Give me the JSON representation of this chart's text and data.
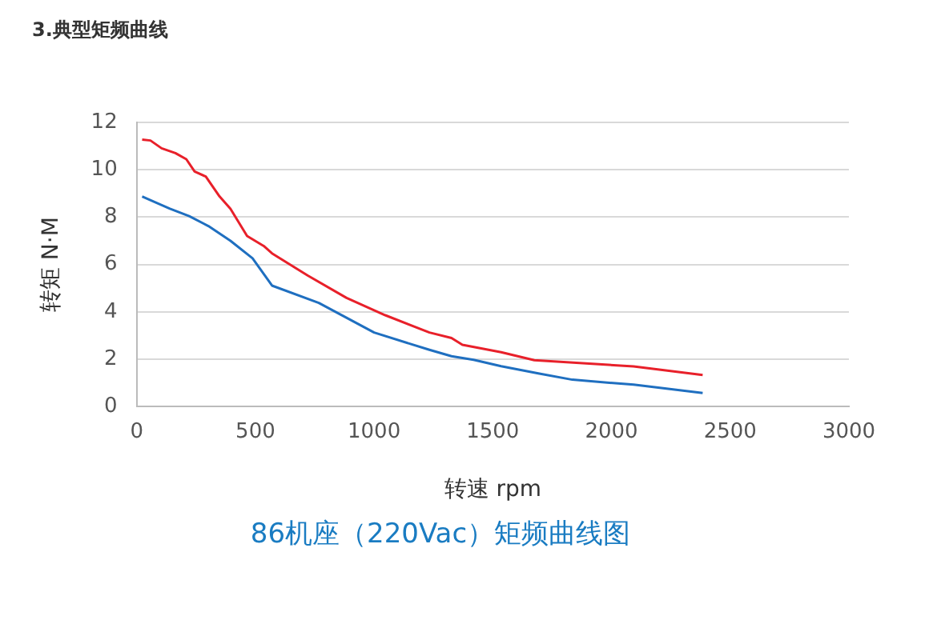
{
  "chart_data": {
    "type": "line",
    "title": "3.典型矩频曲线",
    "subtitle": "86机座（220Vac）矩频曲线图",
    "xlabel": "转速 rpm",
    "ylabel": "转矩 N·M",
    "xlim": [
      0,
      3000
    ],
    "xticks": [
      0,
      500,
      1000,
      1500,
      2000,
      2500,
      3000
    ],
    "ylim": [
      0,
      12
    ],
    "yticks": [
      0,
      2,
      4,
      6,
      8,
      10,
      12
    ],
    "grid": "y",
    "legend": false,
    "marker": "none",
    "line_style": "solid",
    "series": [
      {
        "color": "#1f6fc0",
        "x": [
          23,
          140,
          221,
          302,
          395,
          488,
          570,
          767,
          1000,
          1233,
          1326,
          1419,
          1535,
          1696,
          1835,
          2093,
          2384
        ],
        "values": [
          8.87,
          8.35,
          8.04,
          7.62,
          7.0,
          6.26,
          5.11,
          4.38,
          3.13,
          2.4,
          2.13,
          1.98,
          1.71,
          1.4,
          1.14,
          0.93,
          0.58
        ]
      },
      {
        "color": "#e8202a",
        "x": [
          23,
          58,
          105,
          163,
          209,
          244,
          291,
          349,
          395,
          465,
          535,
          570,
          721,
          884,
          1047,
          1233,
          1326,
          1372,
          1535,
          1675,
          2093,
          2384
        ],
        "values": [
          11.27,
          11.23,
          10.9,
          10.7,
          10.44,
          9.92,
          9.71,
          8.87,
          8.35,
          7.2,
          6.78,
          6.47,
          5.53,
          4.59,
          3.86,
          3.13,
          2.9,
          2.61,
          2.3,
          1.96,
          1.7,
          1.34
        ]
      }
    ]
  }
}
